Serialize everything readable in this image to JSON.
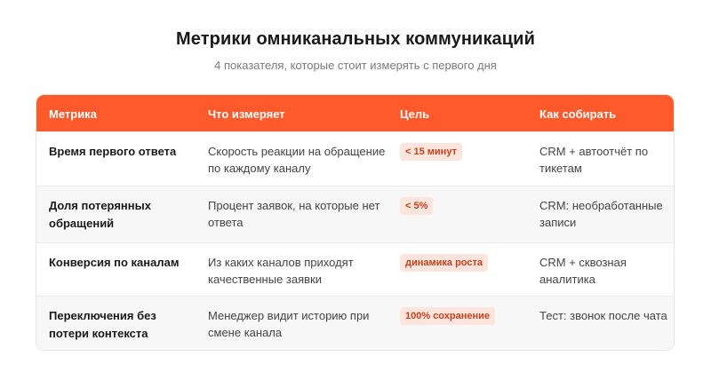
{
  "header": {
    "title": "Метрики омниканальных коммуникаций",
    "subtitle": "4 показателя, которые стоит измерять с первого дня"
  },
  "table": {
    "columns": [
      "Метрика",
      "Что измеряет",
      "Цель",
      "Как собирать"
    ],
    "rows": [
      {
        "metric": "Время первого ответа",
        "measures": "Скорость реакции на обращение по каждому каналу",
        "target": "< 15 минут",
        "collect": "CRM + автоотчёт по тикетам"
      },
      {
        "metric": "Доля потерянных обращений",
        "measures": "Процент заявок, на которые нет ответа",
        "target": "< 5%",
        "collect": "CRM: необработанные записи"
      },
      {
        "metric": "Конверсия по каналам",
        "measures": "Из каких каналов приходят качественные заявки",
        "target": "динамика роста",
        "collect": "CRM + сквозная аналитика"
      },
      {
        "metric": "Переключения без потери контекста",
        "measures": "Менеджер видит историю при смене канала",
        "target": "100% сохранение",
        "collect": "Тест: звонок после чата"
      }
    ]
  },
  "colors": {
    "accent": "#ff5a2c",
    "badge_bg": "#fde4dc",
    "badge_text": "#c8401a",
    "row_alt": "#f7f7f7"
  }
}
